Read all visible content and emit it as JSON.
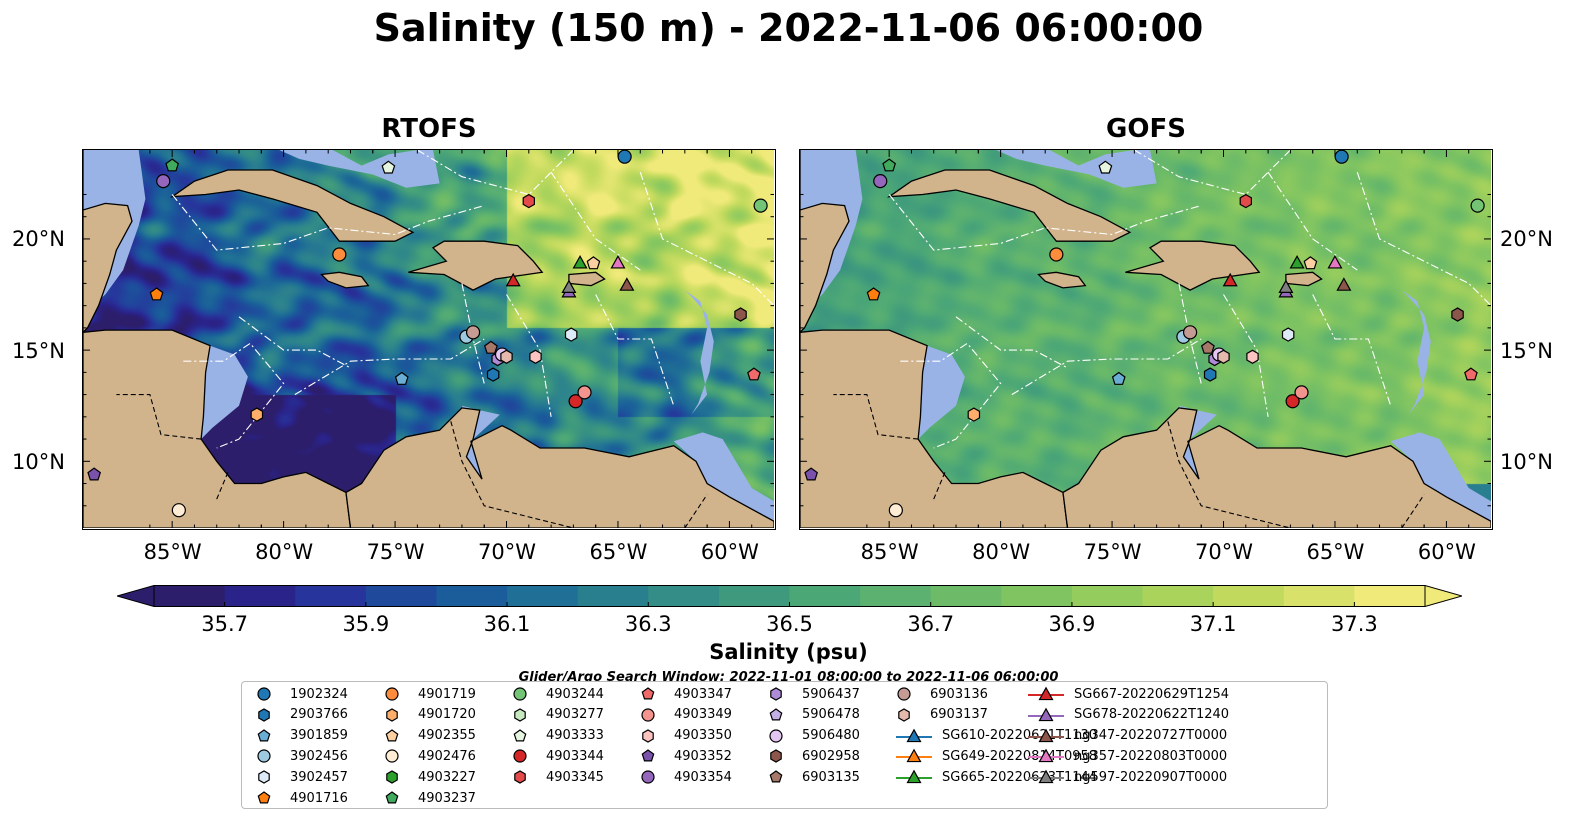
{
  "title": "Salinity (150 m) - 2022-11-06 06:00:00",
  "panels": [
    {
      "name": "RTOFS",
      "palette": "low"
    },
    {
      "name": "GOFS",
      "palette": "high"
    }
  ],
  "lon_labels": [
    "85°W",
    "80°W",
    "75°W",
    "70°W",
    "65°W",
    "60°W"
  ],
  "lat_labels": [
    "20°N",
    "15°N",
    "10°N"
  ],
  "colorbar": {
    "label": "Salinity (psu)",
    "ticks": [
      "35.7",
      "35.9",
      "36.1",
      "36.3",
      "36.5",
      "36.7",
      "36.9",
      "37.1",
      "37.3"
    ],
    "vmin": 35.6,
    "vmax": 37.4,
    "extend": "both",
    "colors": [
      "#2c1e6b",
      "#2a238a",
      "#27349b",
      "#1f4a9c",
      "#1a5d9a",
      "#1f6f96",
      "#2a7f8f",
      "#348d86",
      "#3f9a7d",
      "#4ca777",
      "#5cb170",
      "#6dbb68",
      "#80c462",
      "#95cc5e",
      "#aad35c",
      "#c1da5e",
      "#d8e26a",
      "#f0ea7a"
    ]
  },
  "search_window": "Glider/Argo Search Window: 2022-11-01 08:00:00 to 2022-11-06 06:00:00",
  "colors": {
    "land": "#d2b48c",
    "shelf": "#99b3e6",
    "border": "#000000",
    "eez": "#ffffff"
  },
  "legend": [
    {
      "label": "1902324",
      "marker": "circle",
      "color": "#1f77b4"
    },
    {
      "label": "2903766",
      "marker": "hexagon",
      "color": "#1f77b4"
    },
    {
      "label": "3901859",
      "marker": "pentagon",
      "color": "#6aaed6"
    },
    {
      "label": "3902456",
      "marker": "circle",
      "color": "#9ecae1"
    },
    {
      "label": "3902457",
      "marker": "hexagon",
      "color": "#deebf7"
    },
    {
      "label": "4901716",
      "marker": "pentagon",
      "color": "#ff7f0e"
    },
    {
      "label": "4901719",
      "marker": "circle",
      "color": "#fd8d3c"
    },
    {
      "label": "4901720",
      "marker": "hexagon",
      "color": "#fdae6b"
    },
    {
      "label": "4902355",
      "marker": "pentagon",
      "color": "#fdd0a2"
    },
    {
      "label": "4902476",
      "marker": "circle",
      "color": "#feecd5"
    },
    {
      "label": "4903227",
      "marker": "hexagon",
      "color": "#2ca02c"
    },
    {
      "label": "4903237",
      "marker": "pentagon",
      "color": "#41ab5d"
    },
    {
      "label": "4903244",
      "marker": "circle",
      "color": "#74c476"
    },
    {
      "label": "4903277",
      "marker": "hexagon",
      "color": "#c7e9c0"
    },
    {
      "label": "4903333",
      "marker": "pentagon",
      "color": "#e5f5e0"
    },
    {
      "label": "4903344",
      "marker": "circle",
      "color": "#d62728"
    },
    {
      "label": "4903345",
      "marker": "hexagon",
      "color": "#e34a4a"
    },
    {
      "label": "4903347",
      "marker": "pentagon",
      "color": "#f06a6a"
    },
    {
      "label": "4903349",
      "marker": "circle",
      "color": "#f4948f"
    },
    {
      "label": "4903350",
      "marker": "hexagon",
      "color": "#fbc4c0"
    },
    {
      "label": "4903352",
      "marker": "pentagon",
      "color": "#7b52ab"
    },
    {
      "label": "4903354",
      "marker": "circle",
      "color": "#9467bd"
    },
    {
      "label": "5906437",
      "marker": "hexagon",
      "color": "#ad8bd6"
    },
    {
      "label": "5906478",
      "marker": "pentagon",
      "color": "#c5b0e6"
    },
    {
      "label": "5906480",
      "marker": "circle",
      "color": "#e3c7f2"
    },
    {
      "label": "6902958",
      "marker": "hexagon",
      "color": "#8c564b"
    },
    {
      "label": "6903135",
      "marker": "pentagon",
      "color": "#a6786a"
    },
    {
      "label": "6903136",
      "marker": "circle",
      "color": "#c49c94"
    },
    {
      "label": "6903137",
      "marker": "hexagon",
      "color": "#e6b9ad"
    },
    {
      "label": "SG610-20220621T1130",
      "marker": "triangle-line",
      "color": "#1f77b4"
    },
    {
      "label": "SG649-20220814T0958",
      "marker": "triangle-line",
      "color": "#ff7f0e"
    },
    {
      "label": "SG665-20220623T1144",
      "marker": "triangle-line",
      "color": "#2ca02c"
    },
    {
      "label": "SG667-20220629T1254",
      "marker": "triangle-line",
      "color": "#d62728"
    },
    {
      "label": "SG678-20220622T1240",
      "marker": "triangle-line",
      "color": "#9467bd"
    },
    {
      "label": "ng347-20220727T0000",
      "marker": "triangle-line",
      "color": "#8c564b"
    },
    {
      "label": "ng357-20220803T0000",
      "marker": "triangle-line",
      "color": "#e377c2"
    },
    {
      "label": "ng597-20220907T0000",
      "marker": "triangle-line",
      "color": "#7f7f7f"
    }
  ],
  "chart_data": {
    "type": "heatmap",
    "title": "Salinity (150 m) - 2022-11-06 06:00:00",
    "subplots": [
      "RTOFS",
      "GOFS"
    ],
    "xlim": [
      -89,
      -58
    ],
    "ylim": [
      7,
      24
    ],
    "xticks": [
      -85,
      -80,
      -75,
      -70,
      -65,
      -60
    ],
    "yticks": [
      10,
      15,
      20
    ],
    "colorbar_label": "Salinity (psu)",
    "colorbar_range": [
      35.6,
      37.4
    ],
    "platforms": [
      {
        "label": "1902324",
        "lon": -64.7,
        "lat": 23.7
      },
      {
        "label": "3902456",
        "lon": -71.8,
        "lat": 15.6
      },
      {
        "label": "3901859",
        "lon": -74.7,
        "lat": 13.7
      },
      {
        "label": "2903766",
        "lon": -70.6,
        "lat": 13.9
      },
      {
        "label": "3902457",
        "lon": -67.1,
        "lat": 15.7
      },
      {
        "label": "4901716",
        "lon": -85.7,
        "lat": 17.5
      },
      {
        "label": "4901719",
        "lon": -77.5,
        "lat": 19.3
      },
      {
        "label": "4902355",
        "lon": -66.1,
        "lat": 18.9
      },
      {
        "label": "4901720",
        "lon": -81.2,
        "lat": 12.1
      },
      {
        "label": "4902476",
        "lon": -84.7,
        "lat": 7.8
      },
      {
        "label": "4903237",
        "lon": -85.0,
        "lat": 23.3
      },
      {
        "label": "4903333",
        "lon": -75.3,
        "lat": 23.2
      },
      {
        "label": "4903244",
        "lon": -58.6,
        "lat": 21.5
      },
      {
        "label": "4903345",
        "lon": -69.0,
        "lat": 21.7
      },
      {
        "label": "4903347",
        "lon": -58.9,
        "lat": 13.9
      },
      {
        "label": "4903344",
        "lon": -66.9,
        "lat": 12.7
      },
      {
        "label": "4903349",
        "lon": -66.5,
        "lat": 13.1
      },
      {
        "label": "4903350",
        "lon": -68.7,
        "lat": 14.7
      },
      {
        "label": "4903354",
        "lon": -85.4,
        "lat": 22.6
      },
      {
        "label": "5906437",
        "lon": -70.4,
        "lat": 14.6
      },
      {
        "label": "5906480",
        "lon": -70.2,
        "lat": 14.8
      },
      {
        "label": "4903352",
        "lon": -88.5,
        "lat": 9.4
      },
      {
        "label": "6902958",
        "lon": -59.5,
        "lat": 16.6
      },
      {
        "label": "6903135",
        "lon": -70.7,
        "lat": 15.1
      },
      {
        "label": "6903136",
        "lon": -71.5,
        "lat": 15.8
      },
      {
        "label": "6903137",
        "lon": -70.0,
        "lat": 14.7
      },
      {
        "label": "SG665-20220623T1144",
        "lon": -66.7,
        "lat": 18.9
      },
      {
        "label": "SG667-20220629T1254",
        "lon": -69.7,
        "lat": 18.1
      },
      {
        "label": "SG678-20220622T1240",
        "lon": -67.2,
        "lat": 17.6
      },
      {
        "label": "ng347-20220727T0000",
        "lon": -64.6,
        "lat": 17.9
      },
      {
        "label": "ng357-20220803T0000",
        "lon": -65.0,
        "lat": 18.9
      },
      {
        "label": "ng597-20220907T0000",
        "lon": -67.2,
        "lat": 17.8
      }
    ]
  }
}
